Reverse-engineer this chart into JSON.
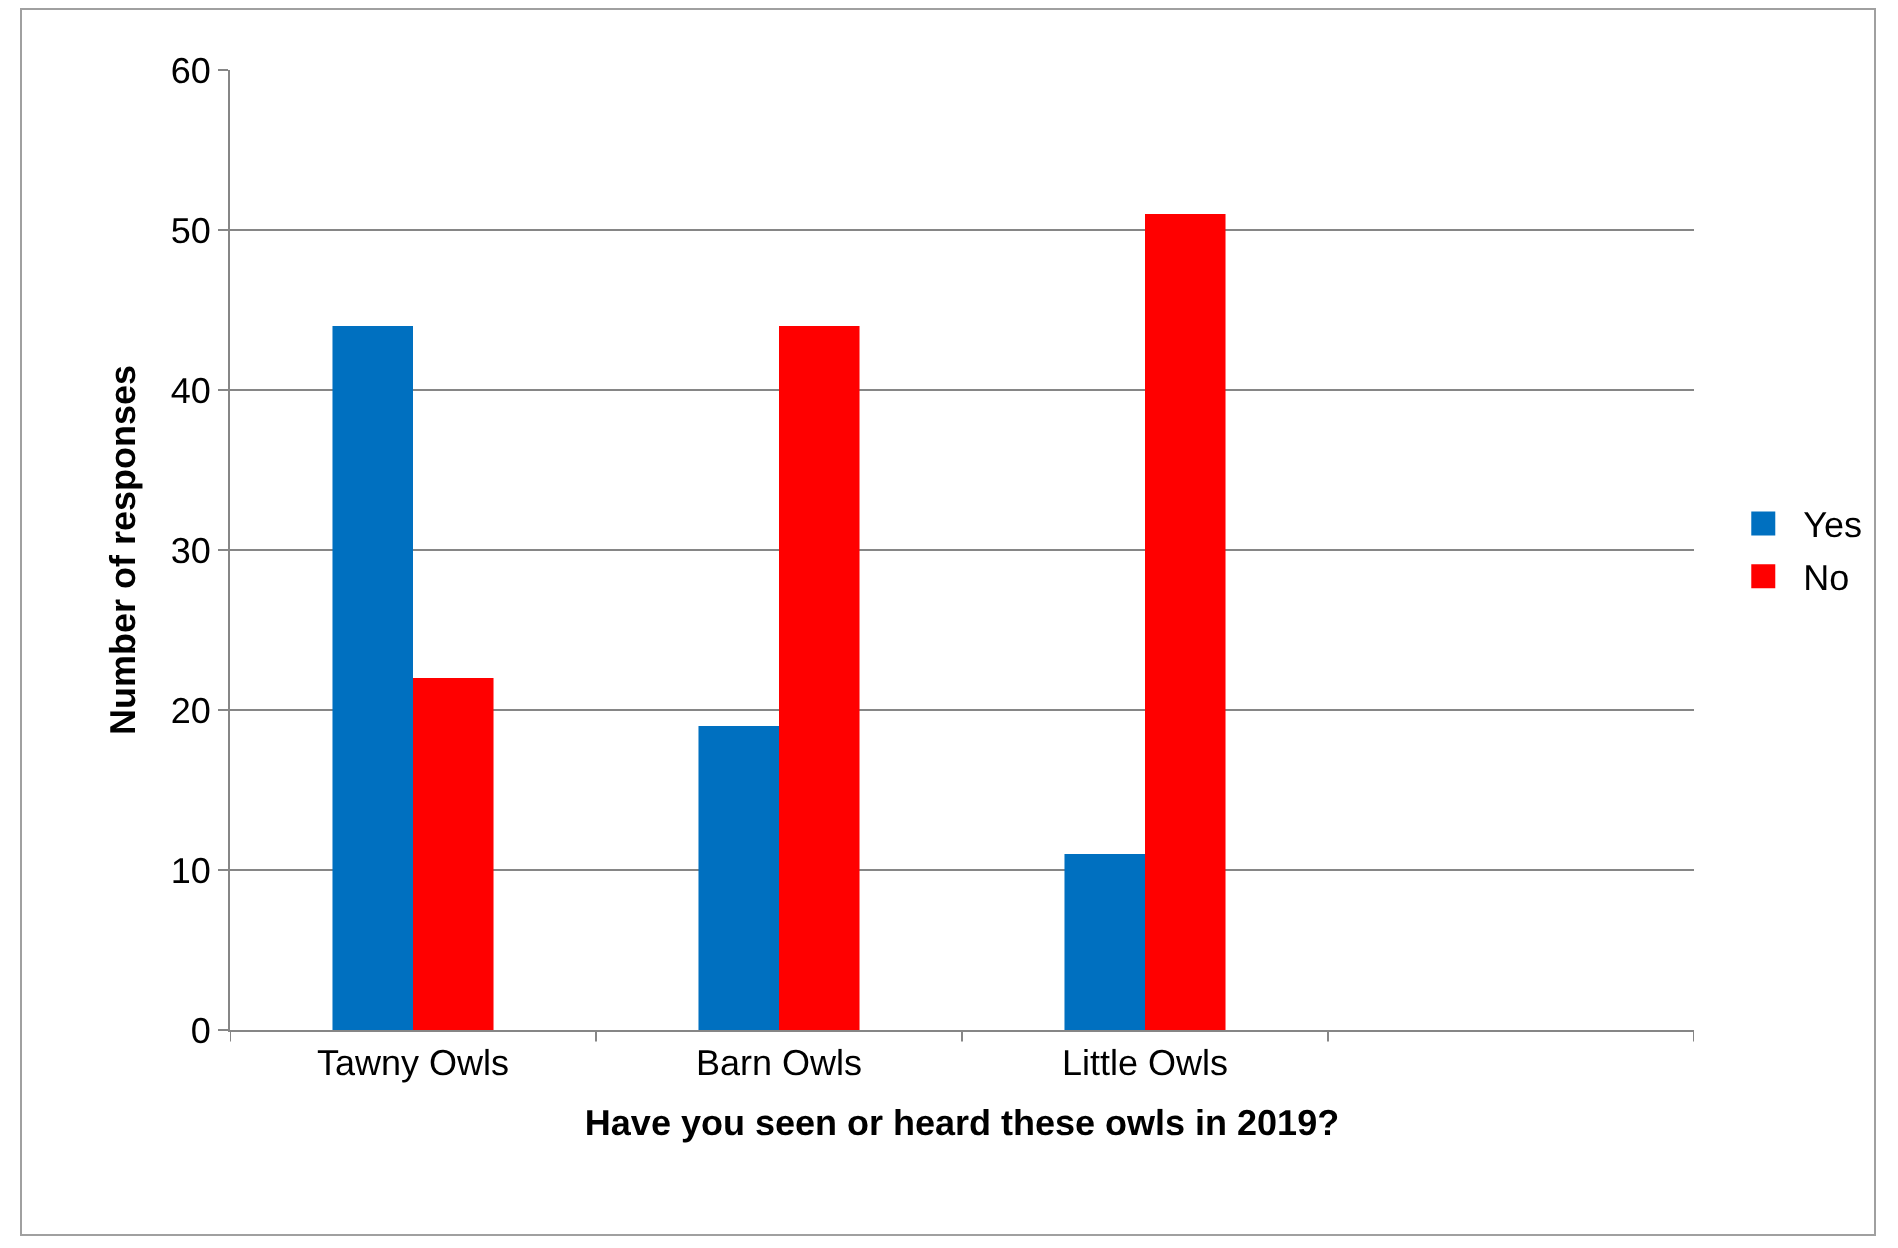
{
  "chart_data": {
    "type": "bar",
    "xlabel": "Have you seen or heard these owls in 2019?",
    "ylabel": "Number of responses",
    "categories": [
      "Tawny Owls",
      "Barn Owls",
      "Little Owls",
      null
    ],
    "series": [
      {
        "name": "Yes",
        "color": "#0070c0",
        "values": [
          44,
          19,
          11,
          null
        ]
      },
      {
        "name": "No",
        "color": "#ff0000",
        "values": [
          22,
          44,
          51,
          null
        ]
      }
    ],
    "ylim": [
      0,
      60
    ],
    "yticks": [
      0,
      10,
      20,
      30,
      40,
      50,
      60
    ],
    "grid": "y",
    "legend": "right"
  }
}
